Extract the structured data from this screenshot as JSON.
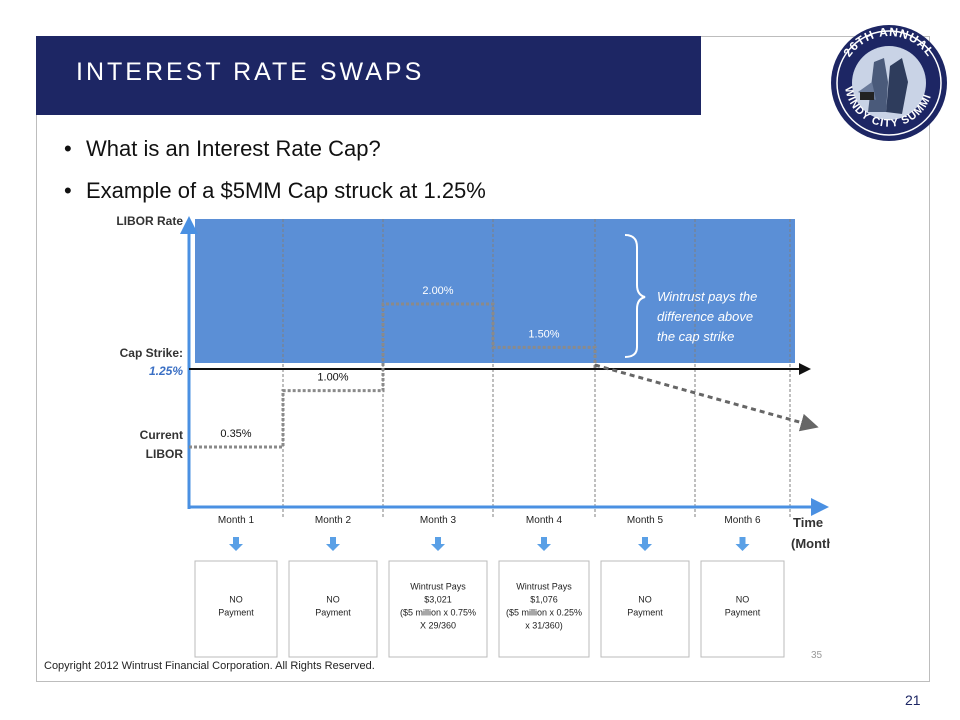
{
  "slide": {
    "title": "INTEREST RATE SWAPS",
    "bullets": [
      "What is an Interest Rate Cap?",
      "Example of a $5MM Cap struck at 1.25%"
    ],
    "copyright": "Copyright 2012 Wintrust Financial Corporation. All Rights Reserved.",
    "slide_number": "21"
  },
  "logo": {
    "text_top": "26TH ANNUAL",
    "text_bottom": "WINDY CITY SUMMIT"
  },
  "figure": {
    "y_axis_label": "LIBOR Rate",
    "cap_label": "Cap Strike:",
    "cap_value": "1.25%",
    "current_label_1": "Current",
    "current_label_2": "LIBOR",
    "annotation_lines": [
      "Wintrust pays the",
      "difference above",
      "the cap strike"
    ],
    "time_label_1": "Time",
    "time_label_2": "(Months)",
    "months": [
      "Month 1",
      "Month 2",
      "Month 3",
      "Month 4",
      "Month 5",
      "Month 6"
    ],
    "rate_labels": [
      "0.35%",
      "1.00%",
      "2.00%",
      "1.50%"
    ],
    "payments": [
      [
        "NO",
        "Payment"
      ],
      [
        "NO",
        "Payment"
      ],
      [
        "Wintrust Pays",
        "$3,021",
        "($5 million x 0.75%",
        "X 29/360"
      ],
      [
        "Wintrust Pays",
        "$1,076",
        "($5 million x 0.25%",
        "x 31/360)"
      ],
      [
        "NO",
        "Payment"
      ],
      [
        "NO",
        "Payment"
      ]
    ],
    "page_ref": "35",
    "colors": {
      "shade": "#5b8fd6",
      "grid": "#7f7f7f",
      "cap_blue": "#3a6fc4",
      "axis": "#4a90e2"
    }
  },
  "chart_data": {
    "type": "line",
    "title": "",
    "xlabel": "Time (Months)",
    "ylabel": "LIBOR Rate",
    "categories": [
      "Month 1",
      "Month 2",
      "Month 3",
      "Month 4",
      "Month 5",
      "Month 6"
    ],
    "series": [
      {
        "values": [
          0.35,
          1.0,
          2.0,
          1.5,
          1.25,
          0.95
        ]
      }
    ],
    "cap_strike": 1.25,
    "annotations": [
      "Wintrust pays the difference above the cap strike"
    ]
  }
}
